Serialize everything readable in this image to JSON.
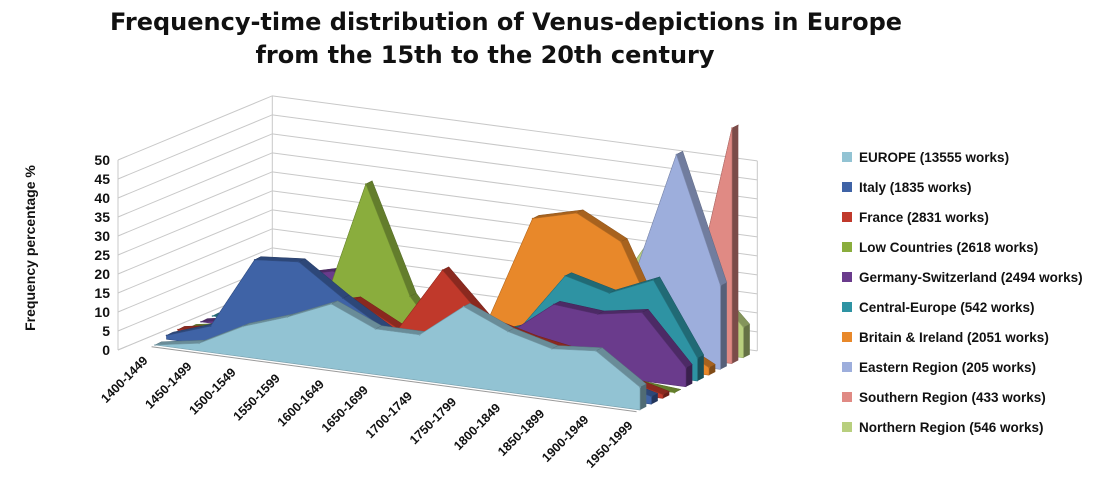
{
  "title_line1": "Frequency-time distribution of Venus-depictions in Europe",
  "title_line2": "from the 15th to the 20th century",
  "chart_data": {
    "type": "area",
    "title": "Frequency-time distribution of Venus-depictions in Europe from the 15th to the 20th century",
    "xlabel": "",
    "ylabel": "Frequency percentage %",
    "ylim": [
      0,
      50
    ],
    "y_ticks": [
      "0",
      "5",
      "10",
      "15",
      "20",
      "25",
      "30",
      "35",
      "40",
      "45",
      "50"
    ],
    "grid": true,
    "legend_position": "right",
    "categories": [
      "1400-1449",
      "1450-1499",
      "1500-1549",
      "1550-1599",
      "1600-1649",
      "1650-1699",
      "1700-1749",
      "1750-1799",
      "1800-1849",
      "1850-1899",
      "1900-1949",
      "1950-1999"
    ],
    "series": [
      {
        "name": "EUROPE (13555 works)",
        "color": "#92c3d3",
        "values": [
          0,
          2,
          8,
          12,
          17,
          12,
          12,
          21,
          16,
          13,
          14,
          6
        ]
      },
      {
        "name": "Italy (1835 works)",
        "color": "#3f63a6",
        "values": [
          1,
          5,
          24,
          25,
          17,
          10,
          9,
          6,
          5,
          5,
          5,
          2
        ]
      },
      {
        "name": "France (2831 works)",
        "color": "#c0392b",
        "values": [
          1,
          3,
          6,
          12,
          15,
          9,
          26,
          14,
          11,
          9,
          4,
          1
        ]
      },
      {
        "name": "Low Countries (2618 works)",
        "color": "#8aad3d",
        "values": [
          0,
          2,
          8,
          9,
          44,
          16,
          2,
          2,
          1,
          1,
          1,
          0
        ]
      },
      {
        "name": "Germany-Switzerland (2494 works)",
        "color": "#6a3b8c",
        "values": [
          0,
          2,
          15,
          18,
          12,
          6,
          5,
          8,
          17,
          16,
          18,
          5
        ]
      },
      {
        "name": "Central-Europe (542 works)",
        "color": "#2e93a3",
        "values": [
          0,
          0,
          1,
          2,
          3,
          4,
          4,
          8,
          23,
          20,
          25,
          6
        ]
      },
      {
        "name": "Britain & Ireland (2051 works)",
        "color": "#e8882a",
        "values": [
          0,
          0,
          1,
          1,
          2,
          5,
          7,
          35,
          38,
          32,
          8,
          2
        ]
      },
      {
        "name": "Eastern Region (205 works)",
        "color": "#9daedc",
        "values": [
          0,
          0,
          0,
          1,
          1,
          1,
          2,
          3,
          5,
          20,
          55,
          22
        ]
      },
      {
        "name": "Southern Region (433 works)",
        "color": "#e08a84",
        "values": [
          0,
          0,
          1,
          1,
          1,
          2,
          3,
          3,
          3,
          5,
          10,
          62
        ]
      },
      {
        "name": "Northern Region (546 works)",
        "color": "#b8cf7e",
        "values": [
          0,
          1,
          2,
          2,
          1,
          1,
          2,
          4,
          12,
          30,
          20,
          8
        ]
      }
    ]
  }
}
